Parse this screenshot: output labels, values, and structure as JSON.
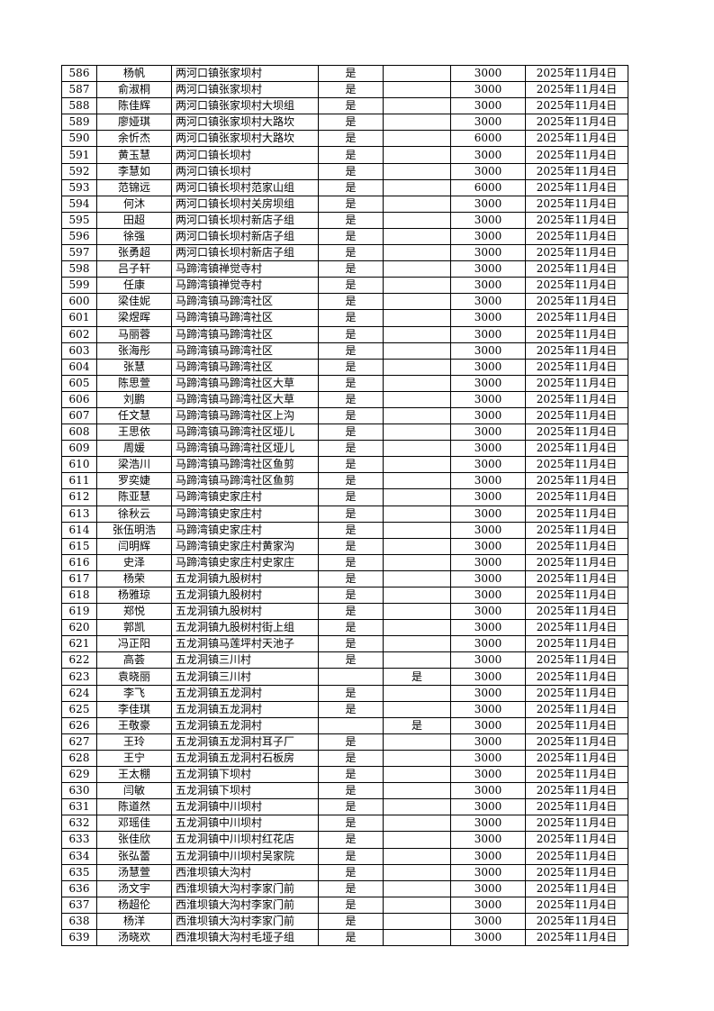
{
  "table": {
    "rows": [
      [
        "586",
        "杨帆",
        "两河口镇张家坝村",
        "是",
        "",
        "3000",
        "2025年11月4日"
      ],
      [
        "587",
        "俞淑桐",
        "两河口镇张家坝村",
        "是",
        "",
        "3000",
        "2025年11月4日"
      ],
      [
        "588",
        "陈佳辉",
        "两河口镇张家坝村大坝组",
        "是",
        "",
        "3000",
        "2025年11月4日"
      ],
      [
        "589",
        "廖娅琪",
        "两河口镇张家坝村大路坎",
        "是",
        "",
        "3000",
        "2025年11月4日"
      ],
      [
        "590",
        "余忻杰",
        "两河口镇张家坝村大路坎",
        "是",
        "",
        "6000",
        "2025年11月4日"
      ],
      [
        "591",
        "黄玉慧",
        "两河口镇长坝村",
        "是",
        "",
        "3000",
        "2025年11月4日"
      ],
      [
        "592",
        "李慧如",
        "两河口镇长坝村",
        "是",
        "",
        "3000",
        "2025年11月4日"
      ],
      [
        "593",
        "范锦远",
        "两河口镇长坝村范家山组",
        "是",
        "",
        "6000",
        "2025年11月4日"
      ],
      [
        "594",
        "何沐",
        "两河口镇长坝村关房坝组",
        "是",
        "",
        "3000",
        "2025年11月4日"
      ],
      [
        "595",
        "田超",
        "两河口镇长坝村新店子组",
        "是",
        "",
        "3000",
        "2025年11月4日"
      ],
      [
        "596",
        "徐强",
        "两河口镇长坝村新店子组",
        "是",
        "",
        "3000",
        "2025年11月4日"
      ],
      [
        "597",
        "张勇超",
        "两河口镇长坝村新店子组",
        "是",
        "",
        "3000",
        "2025年11月4日"
      ],
      [
        "598",
        "吕子轩",
        "马蹄湾镇禅觉寺村",
        "是",
        "",
        "3000",
        "2025年11月4日"
      ],
      [
        "599",
        "任康",
        "马蹄湾镇禅觉寺村",
        "是",
        "",
        "3000",
        "2025年11月4日"
      ],
      [
        "600",
        "梁佳妮",
        "马蹄湾镇马蹄湾社区",
        "是",
        "",
        "3000",
        "2025年11月4日"
      ],
      [
        "601",
        "梁煜晖",
        "马蹄湾镇马蹄湾社区",
        "是",
        "",
        "3000",
        "2025年11月4日"
      ],
      [
        "602",
        "马丽蓉",
        "马蹄湾镇马蹄湾社区",
        "是",
        "",
        "3000",
        "2025年11月4日"
      ],
      [
        "603",
        "张海彤",
        "马蹄湾镇马蹄湾社区",
        "是",
        "",
        "3000",
        "2025年11月4日"
      ],
      [
        "604",
        "张慧",
        "马蹄湾镇马蹄湾社区",
        "是",
        "",
        "3000",
        "2025年11月4日"
      ],
      [
        "605",
        "陈思萱",
        "马蹄湾镇马蹄湾社区大草",
        "是",
        "",
        "3000",
        "2025年11月4日"
      ],
      [
        "606",
        "刘鹏",
        "马蹄湾镇马蹄湾社区大草",
        "是",
        "",
        "3000",
        "2025年11月4日"
      ],
      [
        "607",
        "任文慧",
        "马蹄湾镇马蹄湾社区上沟",
        "是",
        "",
        "3000",
        "2025年11月4日"
      ],
      [
        "608",
        "王思依",
        "马蹄湾镇马蹄湾社区垭儿",
        "是",
        "",
        "3000",
        "2025年11月4日"
      ],
      [
        "609",
        "周媛",
        "马蹄湾镇马蹄湾社区垭儿",
        "是",
        "",
        "3000",
        "2025年11月4日"
      ],
      [
        "610",
        "梁浩川",
        "马蹄湾镇马蹄湾社区鱼剪",
        "是",
        "",
        "3000",
        "2025年11月4日"
      ],
      [
        "611",
        "罗奕婕",
        "马蹄湾镇马蹄湾社区鱼剪",
        "是",
        "",
        "3000",
        "2025年11月4日"
      ],
      [
        "612",
        "陈亚慧",
        "马蹄湾镇史家庄村",
        "是",
        "",
        "3000",
        "2025年11月4日"
      ],
      [
        "613",
        "徐秋云",
        "马蹄湾镇史家庄村",
        "是",
        "",
        "3000",
        "2025年11月4日"
      ],
      [
        "614",
        "张伍明浩",
        "马蹄湾镇史家庄村",
        "是",
        "",
        "3000",
        "2025年11月4日"
      ],
      [
        "615",
        "闫明辉",
        "马蹄湾镇史家庄村黄家沟",
        "是",
        "",
        "3000",
        "2025年11月4日"
      ],
      [
        "616",
        "史泽",
        "马蹄湾镇史家庄村史家庄",
        "是",
        "",
        "3000",
        "2025年11月4日"
      ],
      [
        "617",
        "杨荣",
        "五龙洞镇九股树村",
        "是",
        "",
        "3000",
        "2025年11月4日"
      ],
      [
        "618",
        "杨雅琼",
        "五龙洞镇九股树村",
        "是",
        "",
        "3000",
        "2025年11月4日"
      ],
      [
        "619",
        "郑悦",
        "五龙洞镇九股树村",
        "是",
        "",
        "3000",
        "2025年11月4日"
      ],
      [
        "620",
        "郭凯",
        "五龙洞镇九股树村街上组",
        "是",
        "",
        "3000",
        "2025年11月4日"
      ],
      [
        "621",
        "冯正阳",
        "五龙洞镇马莲坪村天池子",
        "是",
        "",
        "3000",
        "2025年11月4日"
      ],
      [
        "622",
        "高荟",
        "五龙洞镇三川村",
        "是",
        "",
        "3000",
        "2025年11月4日"
      ],
      [
        "623",
        "袁晓丽",
        "五龙洞镇三川村",
        "",
        "是",
        "3000",
        "2025年11月4日"
      ],
      [
        "624",
        "李飞",
        "五龙洞镇五龙洞村",
        "是",
        "",
        "3000",
        "2025年11月4日"
      ],
      [
        "625",
        "李佳琪",
        "五龙洞镇五龙洞村",
        "是",
        "",
        "3000",
        "2025年11月4日"
      ],
      [
        "626",
        "王敬豪",
        "五龙洞镇五龙洞村",
        "",
        "是",
        "3000",
        "2025年11月4日"
      ],
      [
        "627",
        "王玲",
        "五龙洞镇五龙洞村耳子厂",
        "是",
        "",
        "3000",
        "2025年11月4日"
      ],
      [
        "628",
        "王宁",
        "五龙洞镇五龙洞村石板房",
        "是",
        "",
        "3000",
        "2025年11月4日"
      ],
      [
        "629",
        "王太棚",
        "五龙洞镇下坝村",
        "是",
        "",
        "3000",
        "2025年11月4日"
      ],
      [
        "630",
        "闫敏",
        "五龙洞镇下坝村",
        "是",
        "",
        "3000",
        "2025年11月4日"
      ],
      [
        "631",
        "陈道然",
        "五龙洞镇中川坝村",
        "是",
        "",
        "3000",
        "2025年11月4日"
      ],
      [
        "632",
        "邓瑶佳",
        "五龙洞镇中川坝村",
        "是",
        "",
        "3000",
        "2025年11月4日"
      ],
      [
        "633",
        "张佳欣",
        "五龙洞镇中川坝村红花店",
        "是",
        "",
        "3000",
        "2025年11月4日"
      ],
      [
        "634",
        "张弘蕾",
        "五龙洞镇中川坝村吴家院",
        "是",
        "",
        "3000",
        "2025年11月4日"
      ],
      [
        "635",
        "汤慧萱",
        "西淮坝镇大沟村",
        "是",
        "",
        "3000",
        "2025年11月4日"
      ],
      [
        "636",
        "汤文宇",
        "西淮坝镇大沟村李家门前",
        "是",
        "",
        "3000",
        "2025年11月4日"
      ],
      [
        "637",
        "杨超伦",
        "西淮坝镇大沟村李家门前",
        "是",
        "",
        "3000",
        "2025年11月4日"
      ],
      [
        "638",
        "杨洋",
        "西淮坝镇大沟村李家门前",
        "是",
        "",
        "3000",
        "2025年11月4日"
      ],
      [
        "639",
        "汤晓欢",
        "西淮坝镇大沟村毛垭子组",
        "是",
        "",
        "3000",
        "2025年11月4日"
      ]
    ]
  }
}
